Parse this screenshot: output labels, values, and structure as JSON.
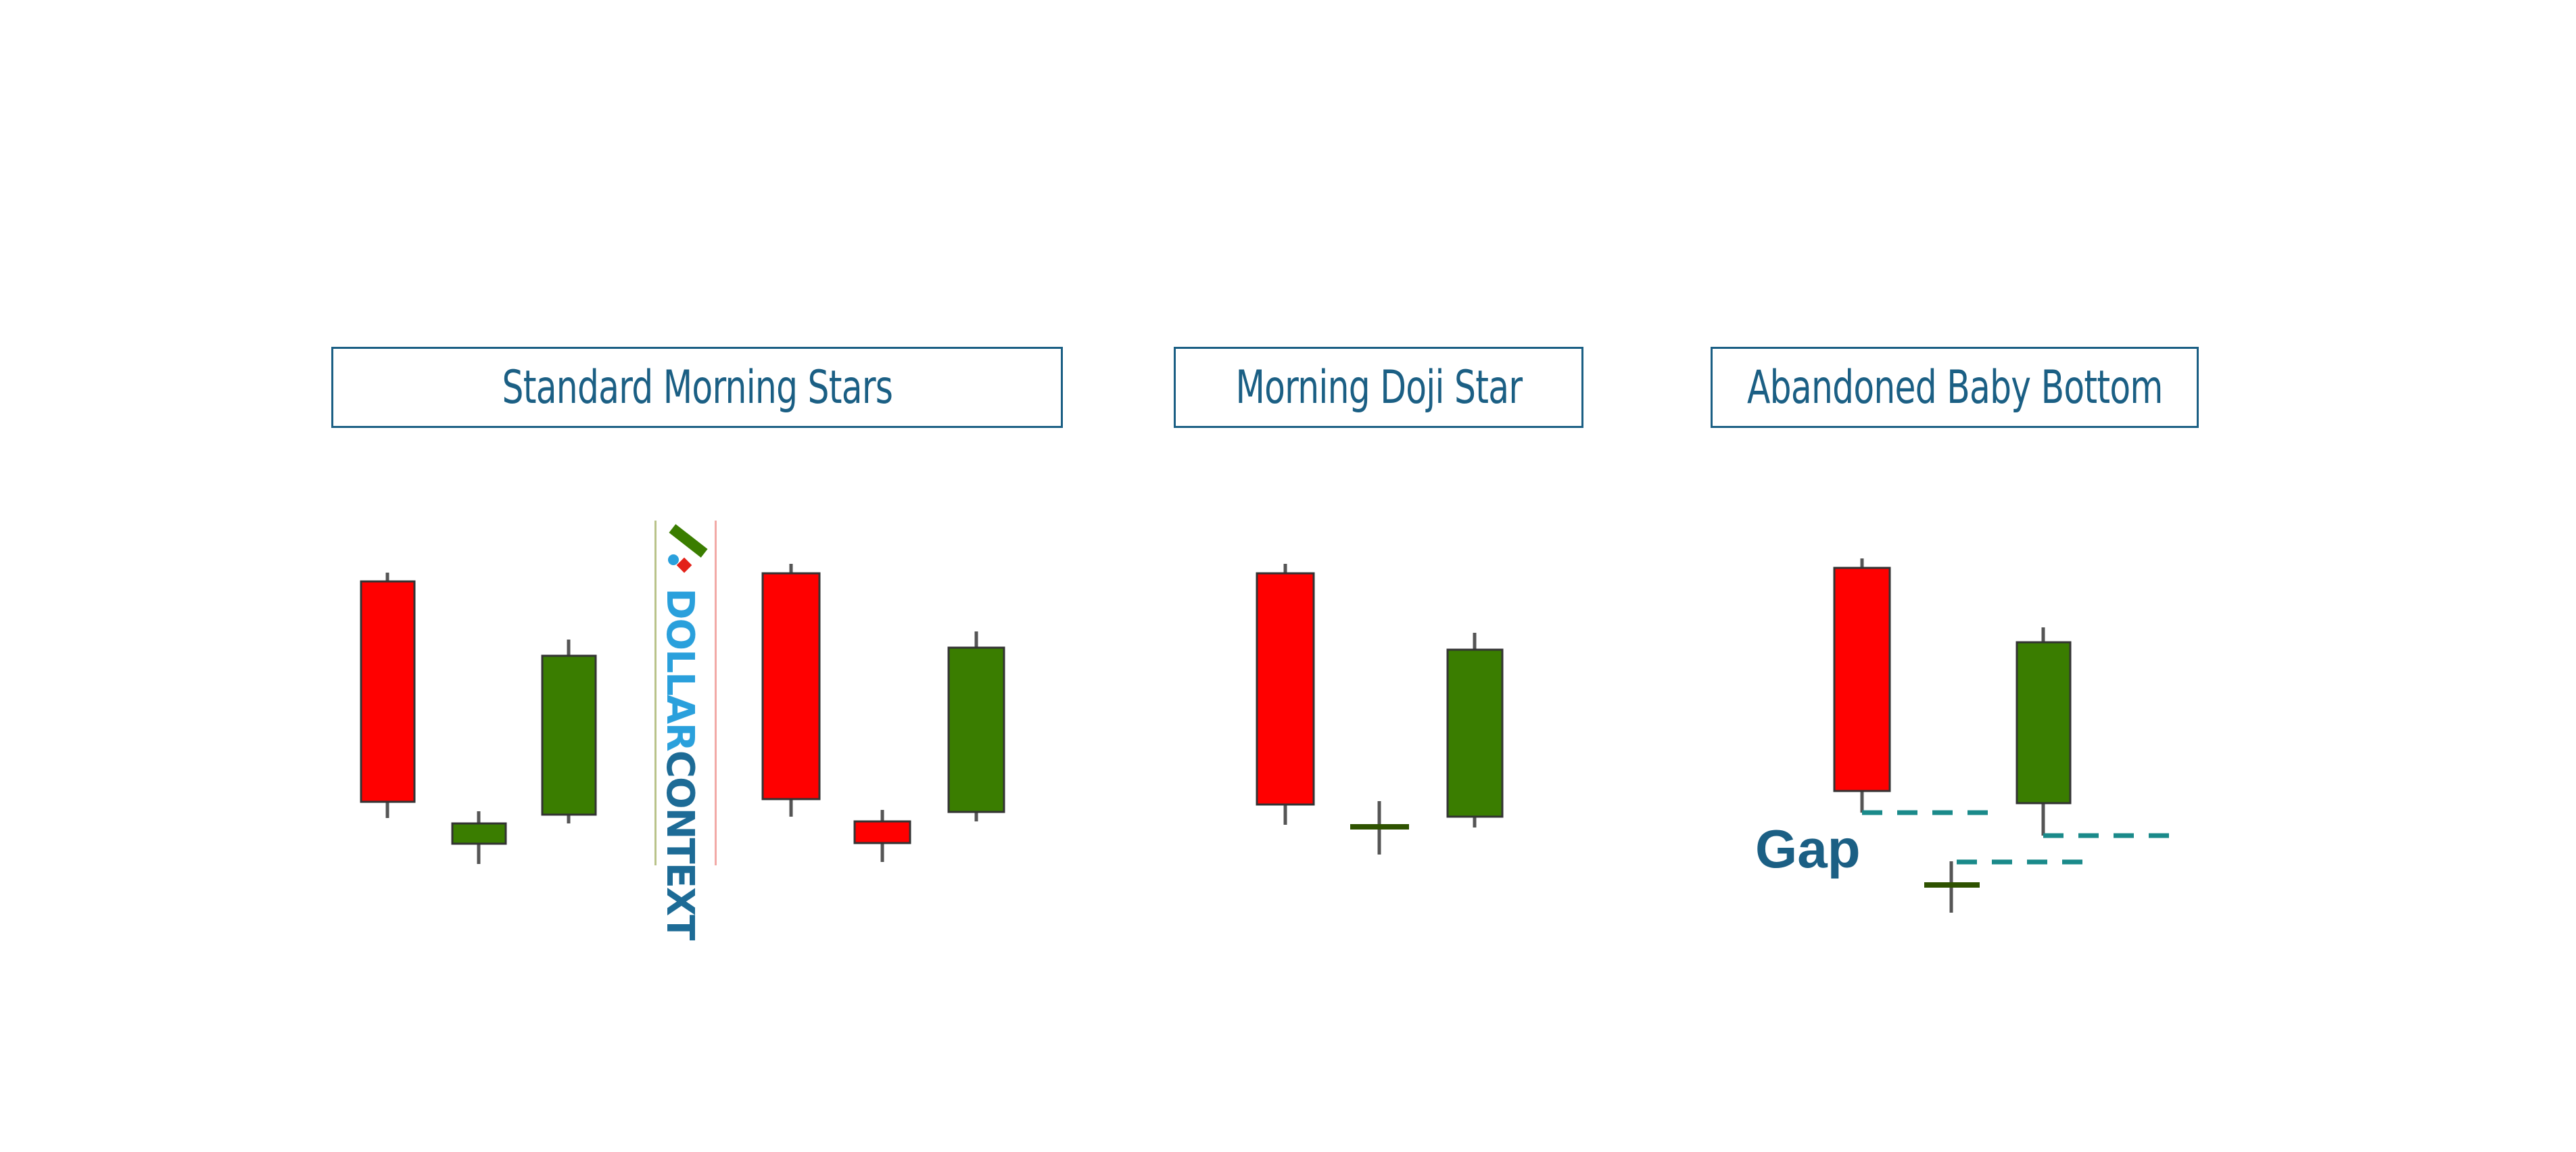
{
  "titles": {
    "standard": "Standard Morning Stars",
    "doji": "Morning Doji Star",
    "abandoned": "Abandoned Baby Bottom"
  },
  "gap_label": "Gap",
  "logo": {
    "part1": "DOLLAR",
    "part2": "CONTEXT"
  },
  "colors": {
    "bearish": "#ff0000",
    "bullish": "#3a7d00",
    "outline": "#333333",
    "wick": "#555555",
    "doji": "#2e5200",
    "gap_line": "#1a8a8a",
    "title": "#1b5f84"
  },
  "candles": [
    {
      "group": "standard-1",
      "type": "bearish"
    },
    {
      "group": "standard-1",
      "type": "bullish-small"
    },
    {
      "group": "standard-1",
      "type": "bullish"
    },
    {
      "group": "standard-2",
      "type": "bearish"
    },
    {
      "group": "standard-2",
      "type": "bearish-small"
    },
    {
      "group": "standard-2",
      "type": "bullish"
    },
    {
      "group": "doji",
      "type": "bearish"
    },
    {
      "group": "doji",
      "type": "doji"
    },
    {
      "group": "doji",
      "type": "bullish"
    },
    {
      "group": "abandoned",
      "type": "bearish"
    },
    {
      "group": "abandoned",
      "type": "doji"
    },
    {
      "group": "abandoned",
      "type": "bullish"
    }
  ]
}
